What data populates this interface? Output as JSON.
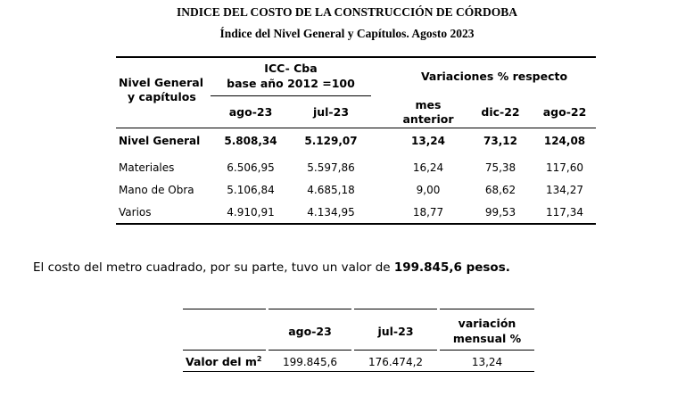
{
  "titles": {
    "main": "INDICE DEL COSTO DE LA CONSTRUCCIÓN DE CÓRDOBA",
    "sub": "Índice del Nivel General y Capítulos.  Agosto 2023"
  },
  "table1": {
    "header": {
      "col0_line1": "Nivel General",
      "col0_line2": "y capítulos",
      "icc_line1": "ICC- Cba",
      "icc_line2": "base año 2012 =100",
      "variaciones": "Variaciones % respecto",
      "ago23": "ago-23",
      "jul23": "jul-23",
      "mes_line1": "mes",
      "mes_line2": "anterior",
      "dic22": "dic-22",
      "ago22": "ago-22"
    },
    "rows": [
      {
        "label": "Nivel General",
        "ago23": "5.808,34",
        "jul23": "5.129,07",
        "mes": "13,24",
        "dic22": "73,12",
        "ago22": "124,08"
      },
      {
        "label": "Materiales",
        "ago23": "6.506,95",
        "jul23": "5.597,86",
        "mes": "16,24",
        "dic22": "75,38",
        "ago22": "117,60"
      },
      {
        "label": "Mano de Obra",
        "ago23": "5.106,84",
        "jul23": "4.685,18",
        "mes": "9,00",
        "dic22": "68,62",
        "ago22": "134,27"
      },
      {
        "label": "Varios",
        "ago23": "4.910,91",
        "jul23": "4.134,95",
        "mes": "18,77",
        "dic22": "99,53",
        "ago22": "117,34"
      }
    ]
  },
  "sentence": {
    "prefix": "El costo del metro cuadrado, por su parte, tuvo un valor de ",
    "value": "199.845,6 pesos."
  },
  "table2": {
    "header": {
      "ago23": "ago-23",
      "jul23": "jul-23",
      "var_line1": "variación",
      "var_line2": "mensual %"
    },
    "row": {
      "label": "Valor del m",
      "label_sup": "2",
      "ago23": "199.845,6",
      "jul23": "176.474,2",
      "var": "13,24"
    }
  }
}
